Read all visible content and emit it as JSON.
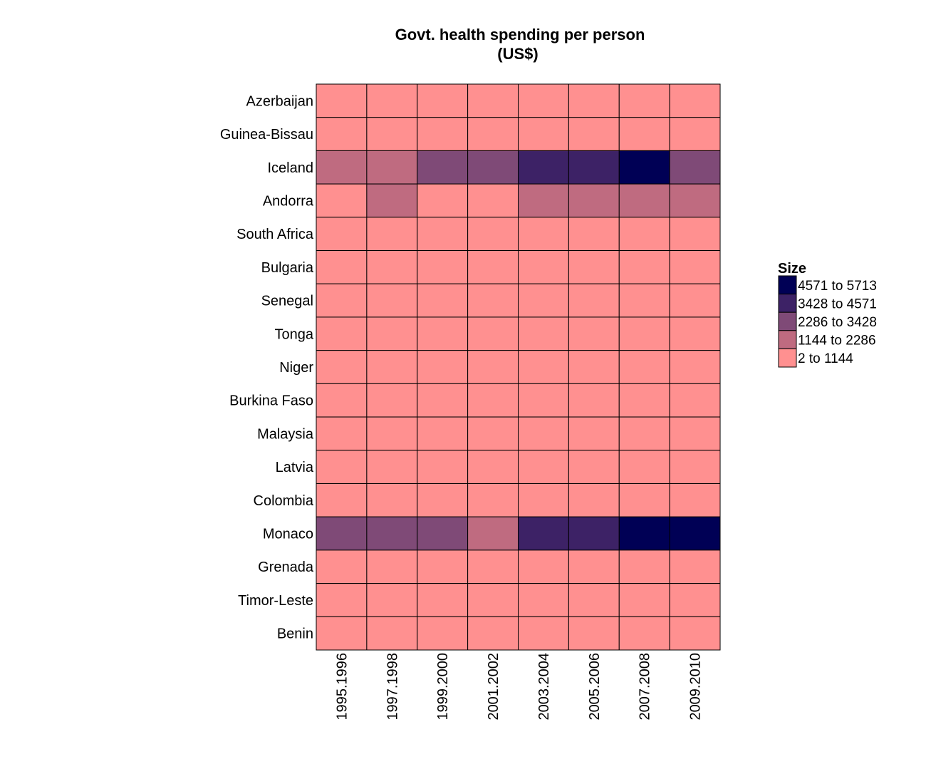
{
  "chart_data": {
    "type": "heatmap",
    "title": [
      "Govt. health spending per person",
      "(US$)"
    ],
    "columns": [
      "1995.1996",
      "1997.1998",
      "1999.2000",
      "2001.2002",
      "2003.2004",
      "2005.2006",
      "2007.2008",
      "2009.2010"
    ],
    "rows": [
      "Azerbaijan",
      "Guinea-Bissau",
      "Iceland",
      "Andorra",
      "South Africa",
      "Bulgaria",
      "Senegal",
      "Tonga",
      "Niger",
      "Burkina Faso",
      "Malaysia",
      "Latvia",
      "Colombia",
      "Monaco",
      "Grenada",
      "Timor-Leste",
      "Benin"
    ],
    "bins": [
      {
        "label": "4571 to 5713",
        "color": "#000055"
      },
      {
        "label": "3428 to 4571",
        "color": "#3d2266"
      },
      {
        "label": "2286 to 3428",
        "color": "#7f4a77"
      },
      {
        "label": "1144 to 2286",
        "color": "#bf6b80"
      },
      {
        "label": "2 to 1144",
        "color": "#ff9090"
      }
    ],
    "cells": [
      [
        4,
        4,
        4,
        4,
        4,
        4,
        4,
        4
      ],
      [
        4,
        4,
        4,
        4,
        4,
        4,
        4,
        4
      ],
      [
        3,
        3,
        2,
        2,
        1,
        1,
        0,
        2
      ],
      [
        4,
        3,
        4,
        4,
        3,
        3,
        3,
        3
      ],
      [
        4,
        4,
        4,
        4,
        4,
        4,
        4,
        4
      ],
      [
        4,
        4,
        4,
        4,
        4,
        4,
        4,
        4
      ],
      [
        4,
        4,
        4,
        4,
        4,
        4,
        4,
        4
      ],
      [
        4,
        4,
        4,
        4,
        4,
        4,
        4,
        4
      ],
      [
        4,
        4,
        4,
        4,
        4,
        4,
        4,
        4
      ],
      [
        4,
        4,
        4,
        4,
        4,
        4,
        4,
        4
      ],
      [
        4,
        4,
        4,
        4,
        4,
        4,
        4,
        4
      ],
      [
        4,
        4,
        4,
        4,
        4,
        4,
        4,
        4
      ],
      [
        4,
        4,
        4,
        4,
        4,
        4,
        4,
        4
      ],
      [
        2,
        2,
        2,
        3,
        1,
        1,
        0,
        0
      ],
      [
        4,
        4,
        4,
        4,
        4,
        4,
        4,
        4
      ],
      [
        4,
        4,
        4,
        4,
        4,
        4,
        4,
        4
      ],
      [
        4,
        4,
        4,
        4,
        4,
        4,
        4,
        4
      ]
    ],
    "legend": {
      "title": "Size",
      "position": "right"
    },
    "grid": false
  }
}
